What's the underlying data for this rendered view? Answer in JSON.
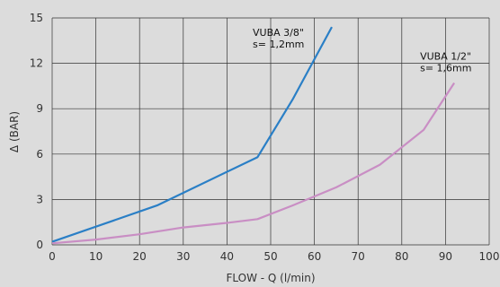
{
  "chart_data": {
    "type": "line",
    "title": "",
    "xlabel": "FLOW - Q (l/min)",
    "ylabel": "Δ (BAR)",
    "xlim": [
      0,
      100
    ],
    "ylim": [
      0,
      15
    ],
    "x_ticks": [
      0,
      10,
      20,
      30,
      40,
      50,
      60,
      70,
      80,
      90,
      100
    ],
    "y_ticks": [
      0,
      3,
      6,
      9,
      12,
      15
    ],
    "grid": true,
    "background": "#dcdcdc",
    "series": [
      {
        "name": "VUBA 3/8\"",
        "note": "s= 1,2mm",
        "color": "#2a7fc6",
        "points": [
          [
            0,
            0.2
          ],
          [
            24,
            2.6
          ],
          [
            47,
            5.8
          ],
          [
            55,
            9.6
          ],
          [
            64,
            14.4
          ]
        ]
      },
      {
        "name": "VUBA 1/2\"",
        "note": "s= 1,6mm",
        "color": "#c98ec4",
        "points": [
          [
            0,
            0.1
          ],
          [
            10,
            0.35
          ],
          [
            20,
            0.7
          ],
          [
            30,
            1.15
          ],
          [
            40,
            1.45
          ],
          [
            47,
            1.7
          ],
          [
            55,
            2.6
          ],
          [
            65,
            3.8
          ],
          [
            75,
            5.3
          ],
          [
            85,
            7.6
          ],
          [
            92,
            10.7
          ]
        ]
      }
    ]
  }
}
